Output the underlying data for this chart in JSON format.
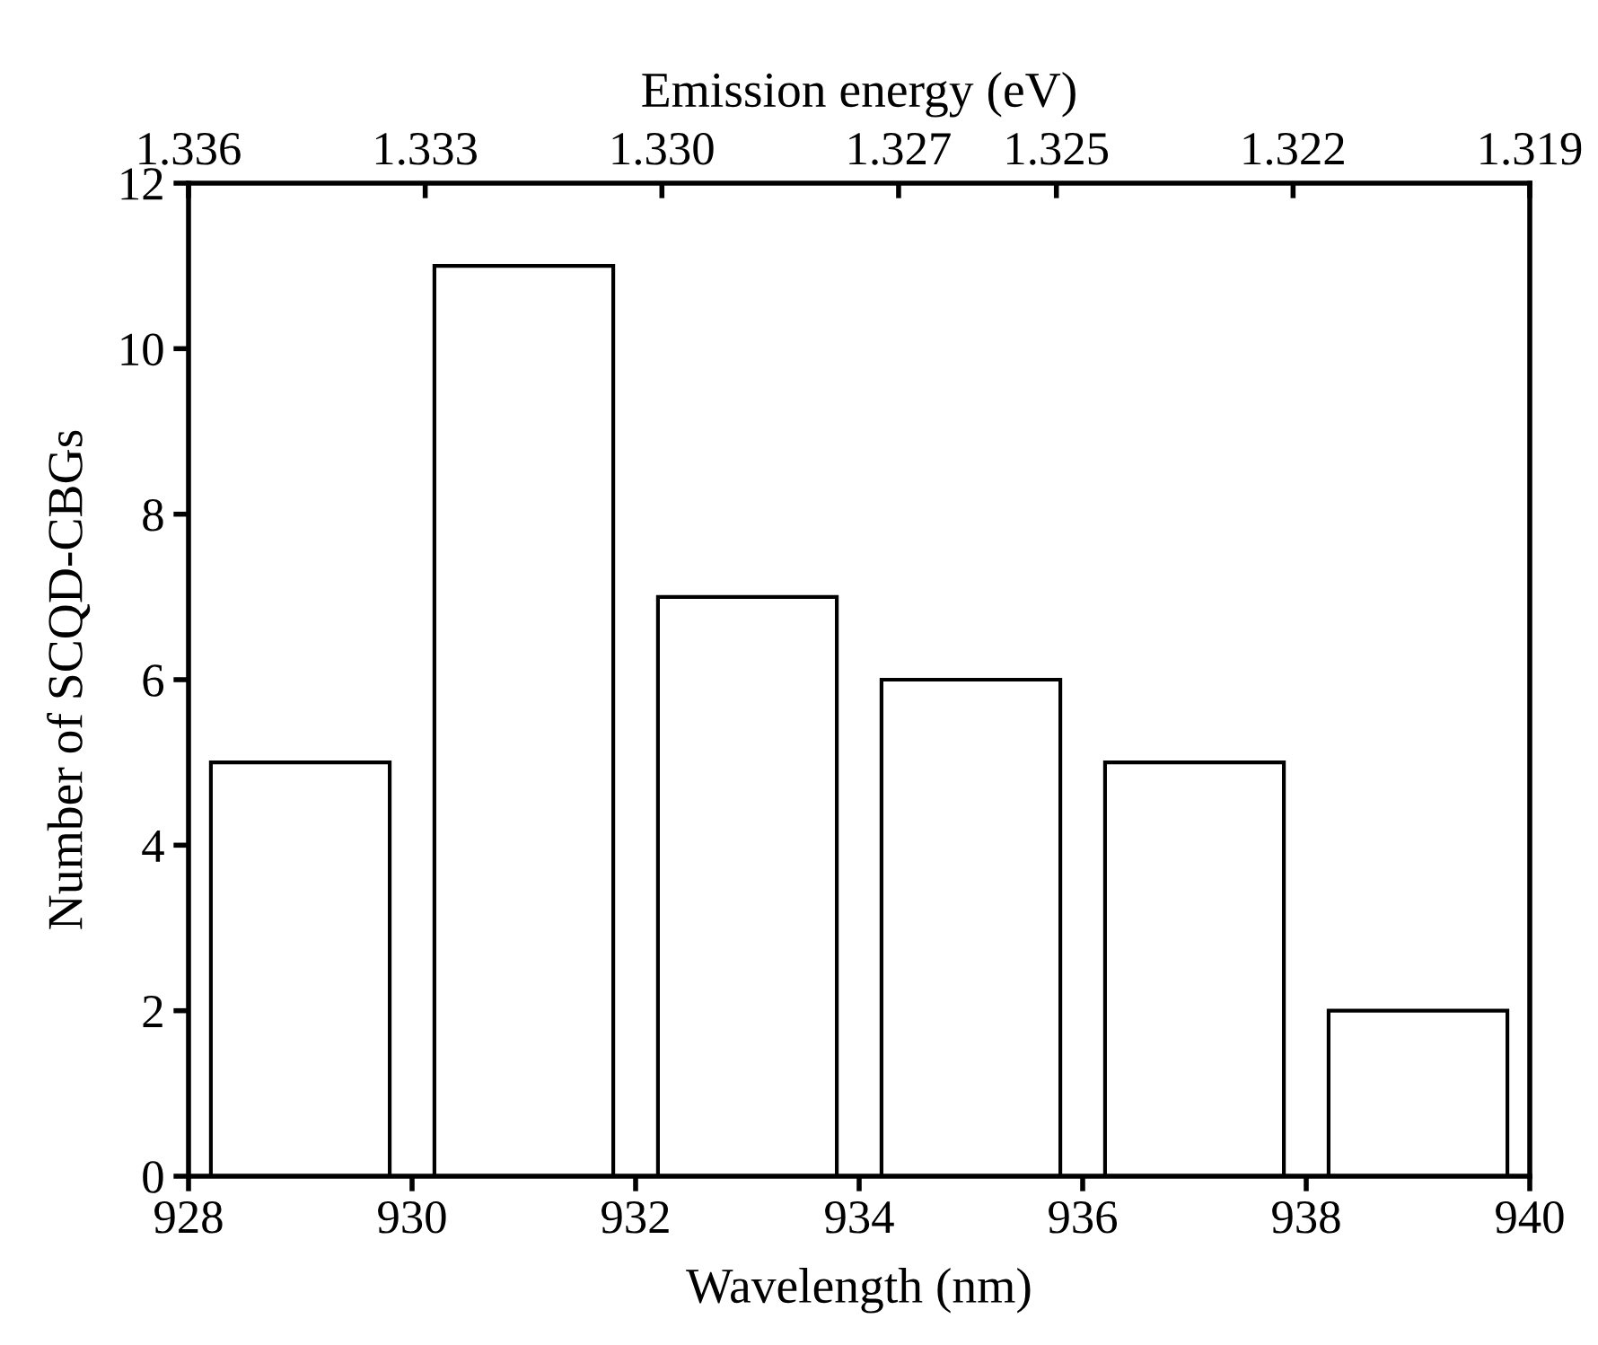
{
  "chart_data": {
    "type": "histogram",
    "xlabel": "Wavelength (nm)",
    "ylabel": "Number of SCQD-CBGs",
    "x2label": "Emission energy (eV)",
    "bins": [
      928,
      930,
      932,
      934,
      936,
      938,
      940
    ],
    "values": [
      5,
      11,
      7,
      6,
      5,
      2
    ],
    "color": "#ffffff",
    "xlim": [
      928,
      940
    ],
    "xticks": [
      928,
      930,
      932,
      934,
      936,
      938,
      940
    ],
    "ylim": [
      0,
      12
    ],
    "yticks": [
      0,
      2,
      4,
      6,
      8,
      10,
      12
    ],
    "x2lim": [
      1.336,
      1.319
    ],
    "x2ticks": [
      {
        "value": 1.336,
        "label": "1.336"
      },
      {
        "value": 1.333,
        "label": "1.333"
      },
      {
        "value": 1.33,
        "label": "1.330"
      },
      {
        "value": 1.327,
        "label": "1.327"
      },
      {
        "value": 1.325,
        "label": "1.325"
      },
      {
        "value": 1.322,
        "label": "1.322"
      },
      {
        "value": 1.319,
        "label": "1.319"
      }
    ],
    "grid": false
  }
}
